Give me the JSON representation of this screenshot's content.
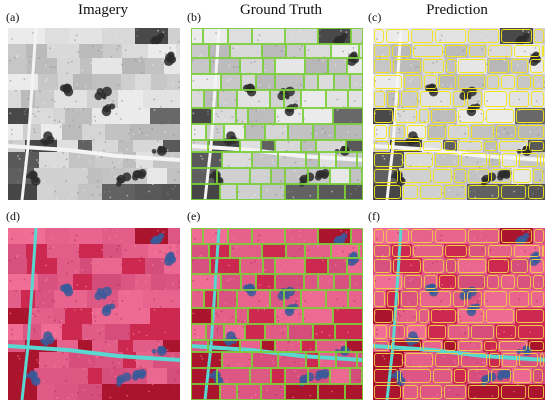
{
  "columns": [
    {
      "title": "Imagery"
    },
    {
      "title": "Ground Truth"
    },
    {
      "title": "Prediction"
    }
  ],
  "panels": [
    {
      "label": "(a)",
      "type": "grayscale",
      "overlay": "none"
    },
    {
      "label": "(b)",
      "type": "grayscale",
      "overlay": "ground-truth",
      "overlay_color": "#7ccf3a"
    },
    {
      "label": "(c)",
      "type": "grayscale",
      "overlay": "prediction",
      "overlay_color": "#f2e51b"
    },
    {
      "label": "(d)",
      "type": "false-color",
      "overlay": "none"
    },
    {
      "label": "(e)",
      "type": "false-color",
      "overlay": "ground-truth",
      "overlay_color": "#7ccf3a"
    },
    {
      "label": "(f)",
      "type": "false-color",
      "overlay": "prediction",
      "overlay_color": "#f2c84b"
    }
  ]
}
